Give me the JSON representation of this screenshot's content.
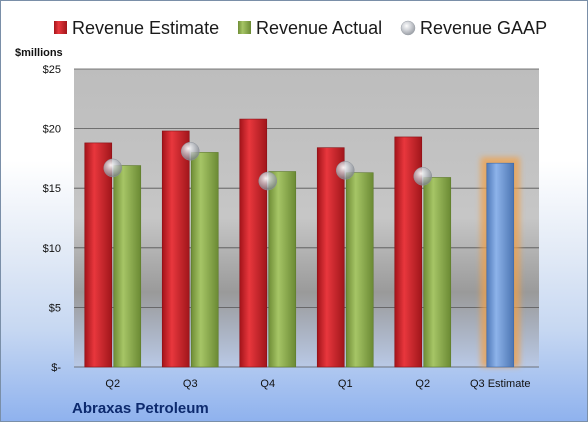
{
  "chart_data": {
    "type": "bar",
    "company": "Abraxas Petroleum",
    "ylabel": "$millions",
    "ylim": [
      0,
      25
    ],
    "yticks": [
      {
        "value": 25,
        "label": "$25"
      },
      {
        "value": 20,
        "label": "$20"
      },
      {
        "value": 15,
        "label": "$15"
      },
      {
        "value": 10,
        "label": "$10"
      },
      {
        "value": 5,
        "label": "$5"
      },
      {
        "value": 0,
        "label": "$-"
      }
    ],
    "categories": [
      "Q2",
      "Q3",
      "Q4",
      "Q1",
      "Q2",
      "Q3 Estimate"
    ],
    "legend_position": "top",
    "series": [
      {
        "name": "Revenue Estimate",
        "kind": "bar",
        "color": "#d42128",
        "values": [
          18.8,
          19.8,
          20.8,
          18.4,
          19.3,
          null
        ]
      },
      {
        "name": "Revenue Actual",
        "kind": "bar",
        "color": "#8fb24e",
        "values": [
          16.9,
          18.0,
          16.4,
          16.3,
          15.9,
          null
        ]
      },
      {
        "name": "Revenue GAAP",
        "kind": "marker",
        "color": "#b8bcc4",
        "values": [
          16.7,
          18.1,
          15.6,
          16.5,
          16.0,
          null
        ]
      },
      {
        "name": "Q3 Estimate",
        "kind": "bar",
        "color": "#6f9ad6",
        "highlight": "#f0a04a",
        "values": [
          null,
          null,
          null,
          null,
          null,
          17.1
        ]
      }
    ],
    "grid": true
  }
}
